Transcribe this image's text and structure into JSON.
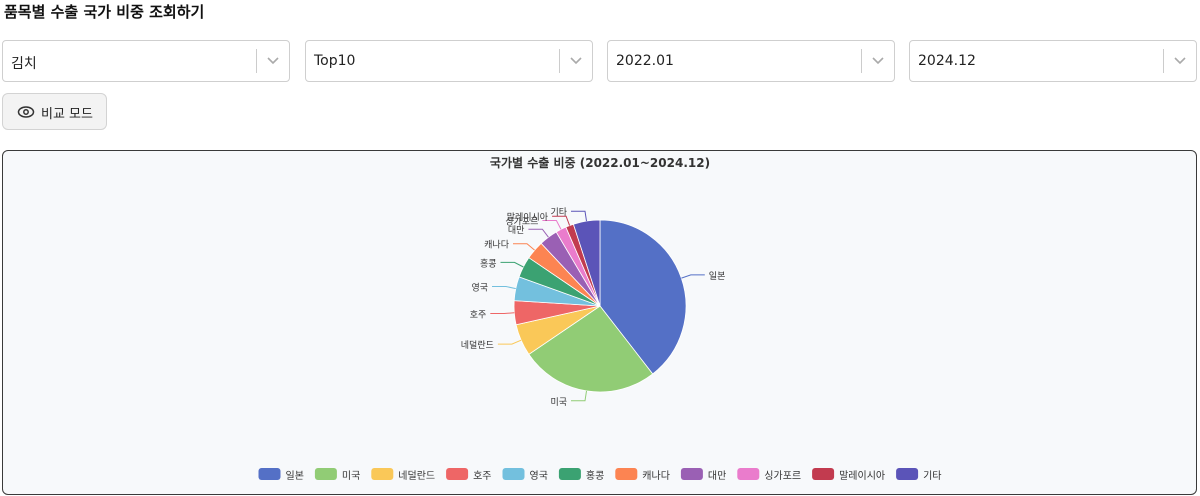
{
  "header": {
    "title": "품목별 수출 국가 비중 조회하기"
  },
  "filters": {
    "item": "김치",
    "rank": "Top10",
    "start": "2022.01",
    "end": "2024.12"
  },
  "compare_mode": {
    "label": "비교 모드",
    "icon": "eye-icon"
  },
  "chart_data": {
    "type": "pie",
    "title": "국가별 수출 비중 (2022.01~2024.12)",
    "legend_position": "bottom",
    "categories": [
      "일본",
      "미국",
      "네덜란드",
      "호주",
      "영국",
      "홍콩",
      "캐나다",
      "대만",
      "싱가포르",
      "말레이시아",
      "기타"
    ],
    "values": [
      39.5,
      26.0,
      6.0,
      4.5,
      4.5,
      4.0,
      3.5,
      3.5,
      2.0,
      1.5,
      5.0
    ],
    "colors": [
      "#5470c6",
      "#91cc75",
      "#fac858",
      "#ee6666",
      "#73c0de",
      "#3ba272",
      "#fc8452",
      "#9a60b4",
      "#ea7ccc",
      "#c23b4f",
      "#5b54b8"
    ]
  }
}
